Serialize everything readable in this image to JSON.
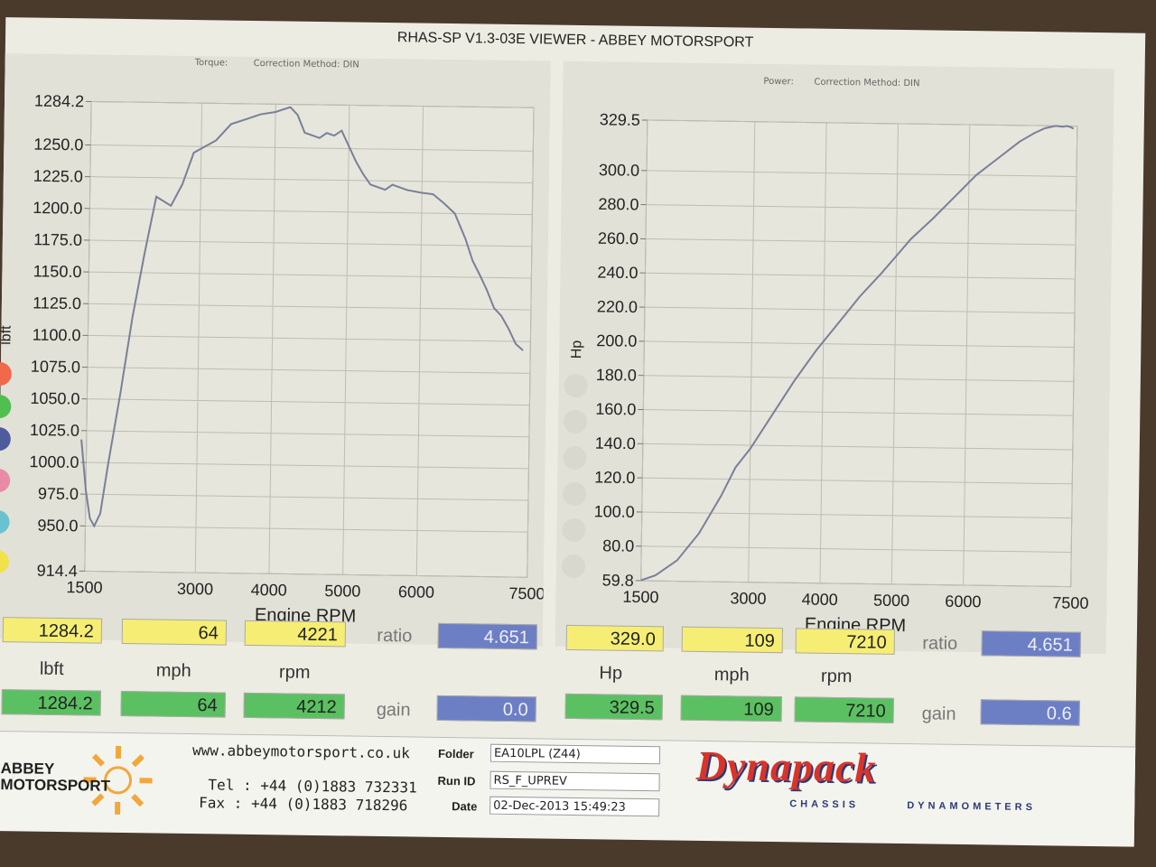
{
  "header": {
    "title": "RHAS-SP V1.3-03E VIEWER - ABBEY MOTORSPORT"
  },
  "torque_panel": {
    "title_label": "Torque:",
    "method": "Correction Method: DIN",
    "xlabel": "Engine RPM",
    "ylabel": "lbft"
  },
  "power_panel": {
    "title_label": "Power:",
    "method": "Correction Method: DIN",
    "xlabel": "Engine RPM",
    "ylabel": "Hp"
  },
  "colors": {
    "line": "#7a7f9a",
    "grid": "#bdbdb3",
    "yellow": "#f6ee74",
    "green": "#5bc061",
    "blue": "#6d7fc4"
  },
  "chart_data": [
    {
      "type": "line",
      "xlabel": "Engine RPM",
      "ylabel": "lbft",
      "xticks": [
        1500,
        3000,
        4000,
        5000,
        6000,
        7500
      ],
      "yticks": [
        914.4,
        950.0,
        975.0,
        1000.0,
        1025.0,
        1050.0,
        1075.0,
        1100.0,
        1125.0,
        1150.0,
        1175.0,
        1200.0,
        1225.0,
        1250.0,
        1284.2
      ],
      "ytick_labels": [
        "914.4",
        "950.0",
        "975.0",
        "1000.0",
        "1025.0",
        "1050.0",
        "1075.0",
        "1100.0",
        "1125.0",
        "1150.0",
        "1175.0",
        "1200.0",
        "1225.0",
        "1250.0",
        "1284.2"
      ],
      "xlim": [
        1500,
        7500
      ],
      "ylim": [
        914.4,
        1284.2
      ],
      "series": [
        {
          "x": [
            1430,
            1500,
            1560,
            1620,
            1700,
            1800,
            1950,
            2100,
            2250,
            2400,
            2600,
            2750,
            2900,
            3050,
            3200,
            3400,
            3600,
            3800,
            4000,
            4100,
            4200,
            4300,
            4400,
            4500,
            4600,
            4700,
            4800,
            4900,
            5000,
            5100,
            5200,
            5300,
            5400,
            5500,
            5600,
            5800,
            6000,
            6150,
            6300,
            6450,
            6600,
            6700,
            6800,
            6900,
            7000,
            7100,
            7200,
            7300,
            7400
          ],
          "y": [
            1018,
            978,
            956,
            950,
            960,
            1000,
            1055,
            1115,
            1165,
            1210,
            1203,
            1220,
            1245,
            1250,
            1255,
            1268,
            1272,
            1276,
            1278,
            1280,
            1282,
            1276,
            1262,
            1260,
            1258,
            1262,
            1260,
            1264,
            1252,
            1240,
            1230,
            1222,
            1220,
            1218,
            1222,
            1218,
            1216,
            1215,
            1208,
            1200,
            1180,
            1163,
            1152,
            1140,
            1126,
            1120,
            1110,
            1098,
            1093
          ]
        }
      ]
    },
    {
      "type": "line",
      "xlabel": "Engine RPM",
      "ylabel": "Hp",
      "xticks": [
        1500,
        3000,
        4000,
        5000,
        6000,
        7500
      ],
      "yticks": [
        59.8,
        80.0,
        100.0,
        120.0,
        140.0,
        160.0,
        180.0,
        200.0,
        220.0,
        240.0,
        260.0,
        280.0,
        300.0,
        329.5
      ],
      "ytick_labels": [
        "59.8",
        "80.0",
        "100.0",
        "120.0",
        "140.0",
        "160.0",
        "180.0",
        "200.0",
        "220.0",
        "240.0",
        "260.0",
        "280.0",
        "300.0",
        "329.5"
      ],
      "xlim": [
        1500,
        7500
      ],
      "ylim": [
        59.8,
        329.5
      ],
      "series": [
        {
          "x": [
            1500,
            1700,
            2000,
            2300,
            2600,
            2800,
            3000,
            3300,
            3600,
            3900,
            4200,
            4500,
            4800,
            5000,
            5200,
            5500,
            5800,
            6100,
            6400,
            6700,
            6900,
            7050,
            7200,
            7300,
            7350,
            7400,
            7450
          ],
          "y": [
            60,
            63,
            72,
            88,
            110,
            127,
            138,
            158,
            178,
            196,
            212,
            228,
            242,
            252,
            262,
            274,
            287,
            300,
            310,
            320,
            325,
            328,
            329.5,
            329,
            329.5,
            329,
            328
          ]
        }
      ]
    }
  ],
  "readouts_left": {
    "top": [
      "1284.2",
      "64",
      "4221"
    ],
    "units": [
      "lbft",
      "mph",
      "rpm"
    ],
    "bottom": [
      "1284.2",
      "64",
      "4212"
    ],
    "ratio_label": "ratio",
    "ratio_value": "4.651",
    "gain_label": "gain",
    "gain_value": "0.0"
  },
  "readouts_right": {
    "top": [
      "329.0",
      "109",
      "7210"
    ],
    "units": [
      "Hp",
      "mph",
      "rpm"
    ],
    "bottom": [
      "329.5",
      "109",
      "7210"
    ],
    "ratio_label": "ratio",
    "ratio_value": "4.651",
    "gain_label": "gain",
    "gain_value": "0.6"
  },
  "footer": {
    "logo_line1": "ABBEY",
    "logo_line2": "MOTORSPORT",
    "website": "www.abbeymotorsport.co.uk",
    "tel": "Tel : +44 (0)1883 732331",
    "fax": "Fax : +44 (0)1883 718296",
    "folder_label": "Folder",
    "folder_value": "EA10LPL (Z44)",
    "runid_label": "Run ID",
    "runid_value": "RS_F_UPREV",
    "date_label": "Date",
    "date_value": "02-Dec-2013  15:49:23",
    "brand": "Dynapack",
    "brand_sub_left": "CHASSIS",
    "brand_sub_right": "DYNAMOMETERS"
  }
}
